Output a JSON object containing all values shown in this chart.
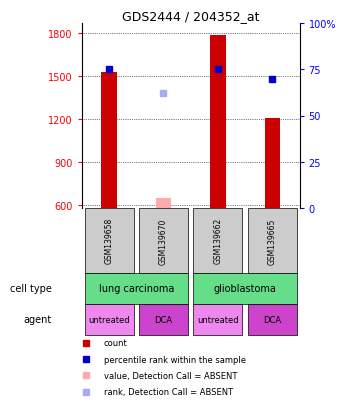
{
  "title": "GDS2444 / 204352_at",
  "samples": [
    "GSM139658",
    "GSM139670",
    "GSM139662",
    "GSM139665"
  ],
  "bar_values": [
    1530,
    650,
    1790,
    1210
  ],
  "bar_absent": [
    false,
    true,
    false,
    false
  ],
  "bar_color_present": "#cc0000",
  "bar_color_absent": "#ffaaaa",
  "rank_values": [
    75,
    null,
    75,
    70
  ],
  "rank_absent_values": [
    null,
    62,
    null,
    null
  ],
  "rank_color_present": "#0000cc",
  "rank_color_absent": "#aaaaee",
  "ylim_left": [
    580,
    1870
  ],
  "ylim_right": [
    0,
    100
  ],
  "yticks_left": [
    600,
    900,
    1200,
    1500,
    1800
  ],
  "yticks_right": [
    0,
    25,
    50,
    75,
    100
  ],
  "yticklabels_right": [
    "0",
    "25",
    "50",
    "75",
    "100%"
  ],
  "bar_width": 0.28,
  "cell_type_groups": [
    {
      "label": "lung carcinoma",
      "cols": [
        0,
        1
      ],
      "color": "#66dd88"
    },
    {
      "label": "glioblastoma",
      "cols": [
        2,
        3
      ],
      "color": "#66dd88"
    }
  ],
  "agents": [
    "untreated",
    "DCA",
    "untreated",
    "DCA"
  ],
  "agent_colors": [
    "#ee88ee",
    "#cc44cc",
    "#ee88ee",
    "#cc44cc"
  ],
  "legend_items": [
    {
      "color": "#cc0000",
      "label": "count"
    },
    {
      "color": "#0000cc",
      "label": "percentile rank within the sample"
    },
    {
      "color": "#ffaaaa",
      "label": "value, Detection Call = ABSENT"
    },
    {
      "color": "#aaaaee",
      "label": "rank, Detection Call = ABSENT"
    }
  ],
  "bg_color": "#ffffff",
  "sample_box_color": "#cccccc",
  "n_samples": 4
}
